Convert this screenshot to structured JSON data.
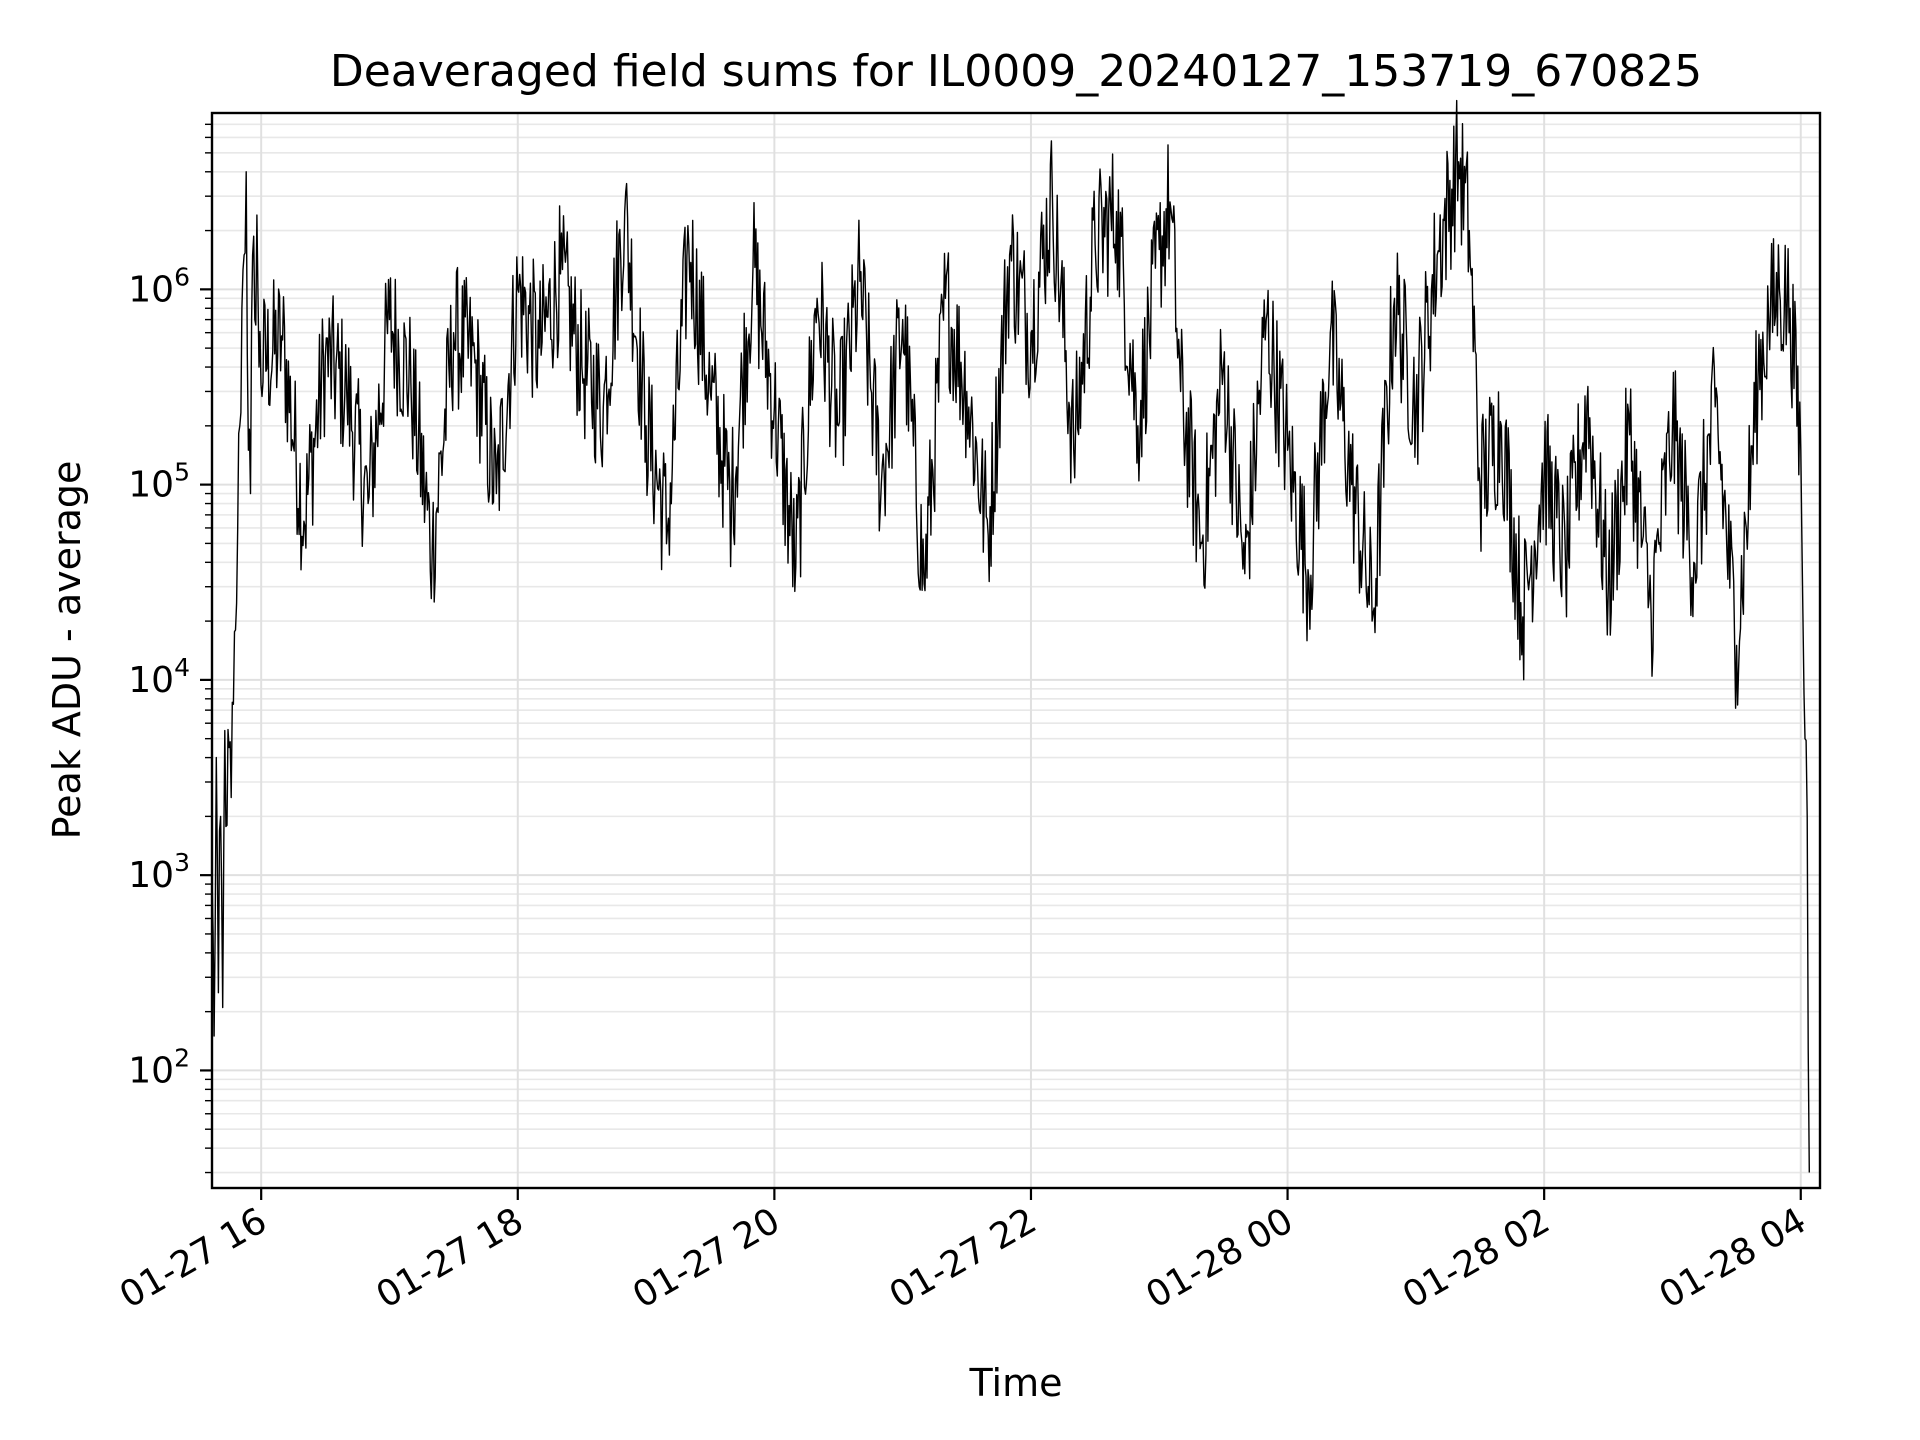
{
  "chart_data": {
    "type": "line",
    "title": "Deaveraged field sums for IL0009_20240127_153719_670825",
    "xlabel": "Time",
    "ylabel": "Peak ADU - average",
    "x_ticks": [
      "01-27 16",
      "01-27 18",
      "01-27 20",
      "01-27 22",
      "01-28 00",
      "01-28 02",
      "01-28 04"
    ],
    "y_scale": "log",
    "y_ticks": [
      {
        "base": "10",
        "exp": "2",
        "value": 100
      },
      {
        "base": "10",
        "exp": "3",
        "value": 1000
      },
      {
        "base": "10",
        "exp": "4",
        "value": 10000
      },
      {
        "base": "10",
        "exp": "5",
        "value": 100000
      },
      {
        "base": "10",
        "exp": "6",
        "value": 1000000
      }
    ],
    "xlim": [
      "2024-01-27 15:37",
      "2024-01-28 04:09"
    ],
    "ylim": [
      25,
      8000000
    ],
    "grid": true,
    "series": [
      {
        "color": "#000000",
        "points": [
          [
            "2024-01-27 15:37",
            1000
          ],
          [
            "2024-01-27 15:38",
            150
          ],
          [
            "2024-01-27 15:39",
            4000
          ],
          [
            "2024-01-27 15:40",
            250
          ],
          [
            "2024-01-27 15:41",
            2000
          ],
          [
            "2024-01-27 15:42",
            210
          ],
          [
            "2024-01-27 15:43",
            5500
          ],
          [
            "2024-01-27 15:44",
            1800
          ],
          [
            "2024-01-27 15:45",
            4500
          ],
          [
            "2024-01-27 15:46",
            2500
          ],
          [
            "2024-01-27 15:47",
            7500
          ],
          [
            "2024-01-27 15:48",
            18000
          ],
          [
            "2024-01-27 15:49",
            60000
          ],
          [
            "2024-01-27 15:50",
            200000
          ],
          [
            "2024-01-27 15:51",
            800000
          ],
          [
            "2024-01-27 15:52",
            1500000
          ],
          [
            "2024-01-27 15:53",
            4000000
          ],
          [
            "2024-01-27 15:54",
            150000
          ],
          [
            "2024-01-27 15:55",
            90000
          ],
          [
            "2024-01-27 15:56",
            1500000
          ],
          [
            "2024-01-27 15:57",
            700000
          ],
          [
            "2024-01-27 15:58",
            2400000
          ],
          [
            "2024-01-27 15:59",
            400000
          ],
          [
            "2024-01-27 16:10",
            550000
          ],
          [
            "2024-01-27 16:20",
            65000
          ],
          [
            "2024-01-27 16:30",
            450000
          ],
          [
            "2024-01-27 16:40",
            300000
          ],
          [
            "2024-01-27 16:50",
            80000
          ],
          [
            "2024-01-27 17:00",
            700000
          ],
          [
            "2024-01-27 17:10",
            330000
          ],
          [
            "2024-01-27 17:20",
            45000
          ],
          [
            "2024-01-27 17:30",
            600000
          ],
          [
            "2024-01-27 17:40",
            420000
          ],
          [
            "2024-01-27 17:50",
            90000
          ],
          [
            "2024-01-27 18:00",
            1000000
          ],
          [
            "2024-01-27 18:10",
            500000
          ],
          [
            "2024-01-27 18:20",
            1200000
          ],
          [
            "2024-01-27 18:30",
            400000
          ],
          [
            "2024-01-27 18:40",
            250000
          ],
          [
            "2024-01-27 18:50",
            2500000
          ],
          [
            "2024-01-27 19:00",
            200000
          ],
          [
            "2024-01-27 19:10",
            60000
          ],
          [
            "2024-01-27 19:20",
            1700000
          ],
          [
            "2024-01-27 19:30",
            300000
          ],
          [
            "2024-01-27 19:40",
            80000
          ],
          [
            "2024-01-27 19:50",
            1300000
          ],
          [
            "2024-01-27 20:00",
            250000
          ],
          [
            "2024-01-27 20:10",
            38000
          ],
          [
            "2024-01-27 20:20",
            900000
          ],
          [
            "2024-01-27 20:30",
            200000
          ],
          [
            "2024-01-27 20:40",
            1100000
          ],
          [
            "2024-01-27 20:50",
            100000
          ],
          [
            "2024-01-27 21:00",
            700000
          ],
          [
            "2024-01-27 21:10",
            31000
          ],
          [
            "2024-01-27 21:20",
            900000
          ],
          [
            "2024-01-27 21:30",
            300000
          ],
          [
            "2024-01-27 21:40",
            55000
          ],
          [
            "2024-01-27 21:50",
            1500000
          ],
          [
            "2024-01-27 22:00",
            600000
          ],
          [
            "2024-01-27 22:10",
            3000000
          ],
          [
            "2024-01-27 22:20",
            150000
          ],
          [
            "2024-01-27 22:30",
            1700000
          ],
          [
            "2024-01-27 22:40",
            2500000
          ],
          [
            "2024-01-27 22:50",
            200000
          ],
          [
            "2024-01-27 23:00",
            1600000
          ],
          [
            "2024-01-27 23:05",
            2800000
          ],
          [
            "2024-01-27 23:10",
            300000
          ],
          [
            "2024-01-27 23:20",
            50000
          ],
          [
            "2024-01-27 23:30",
            400000
          ],
          [
            "2024-01-27 23:40",
            35000
          ],
          [
            "2024-01-27 23:50",
            700000
          ],
          [
            "2024-01-28 00:00",
            150000
          ],
          [
            "2024-01-28 00:10",
            33000
          ],
          [
            "2024-01-28 00:20",
            600000
          ],
          [
            "2024-01-28 00:30",
            100000
          ],
          [
            "2024-01-28 00:40",
            22000
          ],
          [
            "2024-01-28 00:50",
            900000
          ],
          [
            "2024-01-28 01:00",
            250000
          ],
          [
            "2024-01-28 01:10",
            1500000
          ],
          [
            "2024-01-28 01:20",
            4500000
          ],
          [
            "2024-01-28 01:25",
            2000000
          ],
          [
            "2024-01-28 01:30",
            100000
          ],
          [
            "2024-01-28 01:40",
            200000
          ],
          [
            "2024-01-28 01:50",
            21000
          ],
          [
            "2024-01-28 02:00",
            120000
          ],
          [
            "2024-01-28 02:10",
            40000
          ],
          [
            "2024-01-28 02:20",
            250000
          ],
          [
            "2024-01-28 02:30",
            30000
          ],
          [
            "2024-01-28 02:40",
            180000
          ],
          [
            "2024-01-28 02:50",
            22000
          ],
          [
            "2024-01-28 03:00",
            200000
          ],
          [
            "2024-01-28 03:10",
            40000
          ],
          [
            "2024-01-28 03:20",
            250000
          ],
          [
            "2024-01-28 03:30",
            15000
          ],
          [
            "2024-01-28 03:40",
            350000
          ],
          [
            "2024-01-28 03:45",
            700000
          ],
          [
            "2024-01-28 03:50",
            1000000
          ],
          [
            "2024-01-28 03:55",
            800000
          ],
          [
            "2024-01-28 04:00",
            150000
          ],
          [
            "2024-01-28 04:02",
            5000
          ],
          [
            "2024-01-28 04:03",
            2000
          ],
          [
            "2024-01-28 04:04",
            30
          ]
        ]
      }
    ]
  }
}
